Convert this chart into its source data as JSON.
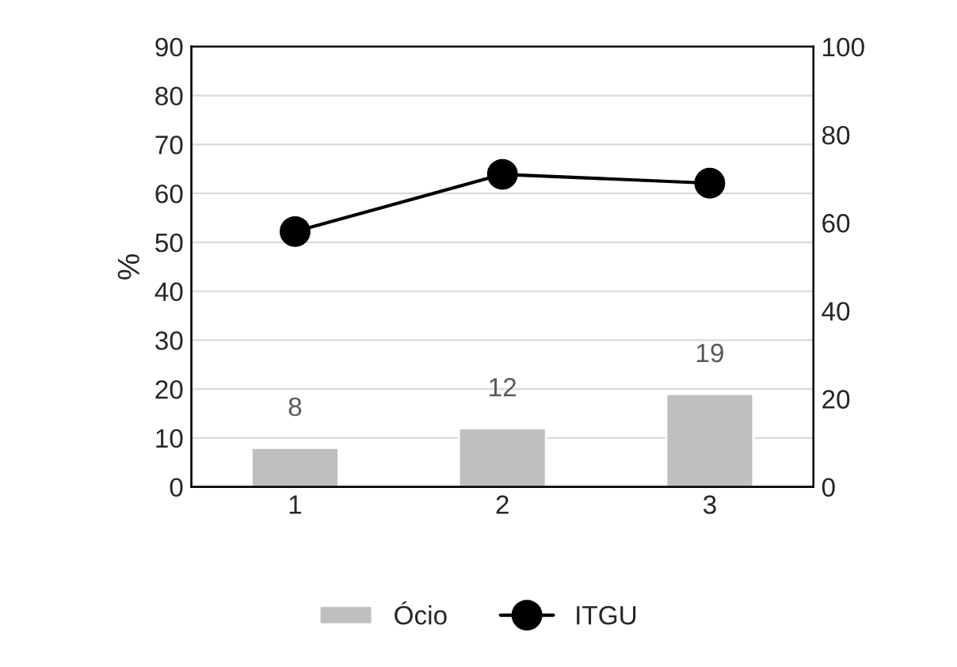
{
  "chart_data": {
    "type": "bar",
    "categories": [
      "1",
      "2",
      "3"
    ],
    "ylabel": "%",
    "series": [
      {
        "name": "Ócio",
        "color": "#bfbfbf",
        "values": [
          8,
          12,
          19
        ],
        "value_labels": [
          "8",
          "12",
          "19"
        ]
      },
      {
        "name": "ITGU",
        "type": "line",
        "axis": "y2",
        "color": "#000000",
        "values": [
          58,
          71,
          69
        ]
      }
    ],
    "ylim": [
      0,
      90
    ],
    "yticks": [
      0,
      10,
      20,
      30,
      40,
      50,
      60,
      70,
      80,
      90
    ],
    "y2lim": [
      0,
      100
    ],
    "y2ticks": [
      0,
      20,
      40,
      60,
      80,
      100
    ],
    "grid": "y",
    "legend": "bottom",
    "marker": "circle",
    "line_style": "solid"
  }
}
